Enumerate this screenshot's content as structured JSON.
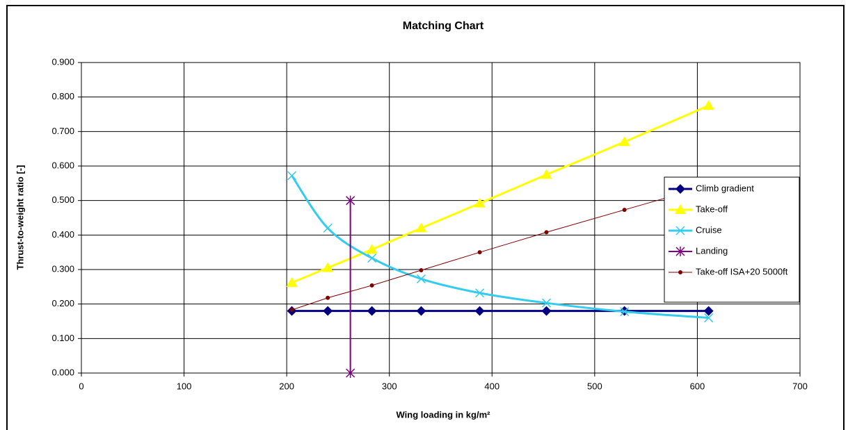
{
  "chart_data": {
    "type": "line",
    "title": "Matching Chart",
    "x_label": "Wing loading in kg/m²",
    "y_label": "Thrust-to-weight ratio [-]",
    "xlim": [
      0,
      700
    ],
    "xticks": [
      0,
      100,
      200,
      300,
      400,
      500,
      600,
      700
    ],
    "ylim": [
      0,
      0.9
    ],
    "yticks": [
      {
        "value": 0,
        "label": "0.000"
      },
      {
        "value": 0.1,
        "label": "0.100"
      },
      {
        "value": 0.2,
        "label": "0.200"
      },
      {
        "value": 0.3,
        "label": "0.300"
      },
      {
        "value": 0.4,
        "label": "0.400"
      },
      {
        "value": 0.5,
        "label": "0.500"
      },
      {
        "value": 0.6,
        "label": "0.600"
      },
      {
        "value": 0.7,
        "label": "0.700"
      },
      {
        "value": 0.8,
        "label": "0.800"
      },
      {
        "value": 0.9,
        "label": "0.900"
      }
    ],
    "grid": true,
    "legend": "right",
    "series": [
      {
        "name": "Climb gradient",
        "color": "#000080",
        "marker": "diamond",
        "width": 3,
        "x": [
          205,
          240,
          283,
          331,
          388,
          453,
          529,
          611
        ],
        "values": [
          0.18,
          0.18,
          0.18,
          0.18,
          0.18,
          0.18,
          0.18,
          0.18
        ]
      },
      {
        "name": "Take-off",
        "color": "#ffff00",
        "marker": "triangle",
        "width": 3,
        "x": [
          205,
          240,
          283,
          331,
          388,
          453,
          529,
          611
        ],
        "values": [
          0.262,
          0.305,
          0.358,
          0.42,
          0.492,
          0.575,
          0.67,
          0.775
        ]
      },
      {
        "name": "Cruise",
        "color": "#33ccee",
        "marker": "x",
        "width": 3,
        "smooth": true,
        "x": [
          205,
          240,
          283,
          331,
          388,
          453,
          529,
          611
        ],
        "values": [
          0.572,
          0.42,
          0.333,
          0.273,
          0.232,
          0.203,
          0.178,
          0.16
        ]
      },
      {
        "name": "Landing",
        "color": "#800080",
        "marker": "asterisk",
        "width": 2,
        "x": [
          262,
          262
        ],
        "values": [
          0,
          0.5
        ]
      },
      {
        "name": "Take-off ISA+20 5000ft",
        "color": "#800000",
        "marker": "dot",
        "width": 1,
        "x": [
          205,
          240,
          283,
          331,
          388,
          453,
          529,
          611
        ],
        "values": [
          0.183,
          0.218,
          0.254,
          0.298,
          0.35,
          0.408,
          0.473,
          0.543
        ]
      }
    ]
  }
}
